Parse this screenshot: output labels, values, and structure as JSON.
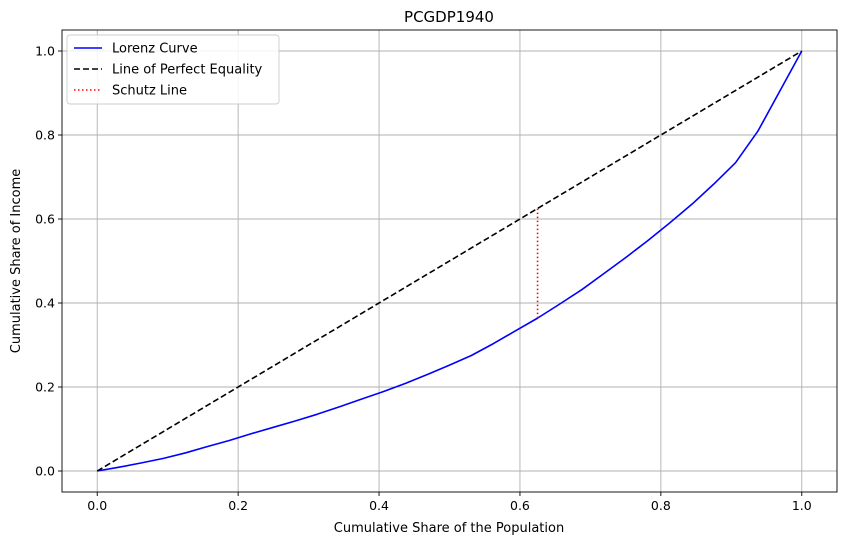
{
  "chart_data": {
    "type": "line",
    "title": "PCGDP1940",
    "xlabel": "Cumulative Share of the Population",
    "ylabel": "Cumulative Share of Income",
    "xlim": [
      -0.05,
      1.05
    ],
    "ylim": [
      -0.05,
      1.05
    ],
    "grid": true,
    "legend_position": "top-left",
    "xticks": [
      0.0,
      0.2,
      0.4,
      0.6,
      0.8,
      1.0
    ],
    "xtick_labels": [
      "0.0",
      "0.2",
      "0.4",
      "0.6",
      "0.8",
      "1.0"
    ],
    "yticks": [
      0.0,
      0.2,
      0.4,
      0.6,
      0.8,
      1.0
    ],
    "ytick_labels": [
      "0.0",
      "0.2",
      "0.4",
      "0.6",
      "0.8",
      "1.0"
    ],
    "series": [
      {
        "name": "Lorenz Curve",
        "color": "#0000ff",
        "style": "solid",
        "x": [
          0.0,
          0.031,
          0.062,
          0.094,
          0.125,
          0.156,
          0.188,
          0.219,
          0.25,
          0.281,
          0.312,
          0.344,
          0.375,
          0.406,
          0.438,
          0.469,
          0.5,
          0.531,
          0.562,
          0.594,
          0.625,
          0.656,
          0.688,
          0.719,
          0.75,
          0.781,
          0.812,
          0.844,
          0.875,
          0.906,
          0.938,
          0.969,
          1.0
        ],
        "y": [
          0.0,
          0.009,
          0.019,
          0.03,
          0.043,
          0.058,
          0.073,
          0.089,
          0.104,
          0.119,
          0.135,
          0.153,
          0.171,
          0.189,
          0.209,
          0.23,
          0.252,
          0.275,
          0.303,
          0.334,
          0.364,
          0.397,
          0.432,
          0.47,
          0.508,
          0.548,
          0.59,
          0.635,
          0.683,
          0.734,
          0.81,
          0.905,
          1.0
        ]
      },
      {
        "name": "Line of Perfect Equality",
        "color": "#000000",
        "style": "dashed",
        "x": [
          0.0,
          1.0
        ],
        "y": [
          0.0,
          1.0
        ]
      },
      {
        "name": "Schutz Line",
        "color": "#ff0000",
        "style": "dotted",
        "x": [
          0.625,
          0.625
        ],
        "y": [
          0.364,
          0.625
        ]
      }
    ]
  }
}
